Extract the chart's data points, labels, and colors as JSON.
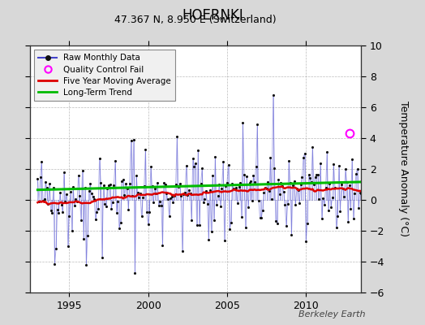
{
  "title": "HOERNKI",
  "subtitle": "47.367 N, 8.950 E (Switzerland)",
  "ylabel": "Temperature Anomaly (°C)",
  "watermark": "Berkeley Earth",
  "ylim": [
    -6,
    10
  ],
  "yticks": [
    -6,
    -4,
    -2,
    0,
    2,
    4,
    6,
    8,
    10
  ],
  "xlim_start": 1992.5,
  "xlim_end": 2013.5,
  "xticks": [
    1995,
    2000,
    2005,
    2010
  ],
  "bg_color": "#d8d8d8",
  "plot_bg_color": "#ffffff",
  "raw_line_color": "#4444cc",
  "raw_dot_color": "#111111",
  "raw_line_alpha": 0.45,
  "moving_avg_color": "#dd0000",
  "trend_color": "#00bb00",
  "qc_fail_color": "#ff00ff",
  "trend_slope": 0.025,
  "trend_intercept": 0.65,
  "moving_avg_window": 60,
  "qc_fail_x": 2012.75,
  "qc_fail_y": 4.3,
  "seed": 42,
  "n_months": 252,
  "start_year": 1993,
  "start_month": 1
}
